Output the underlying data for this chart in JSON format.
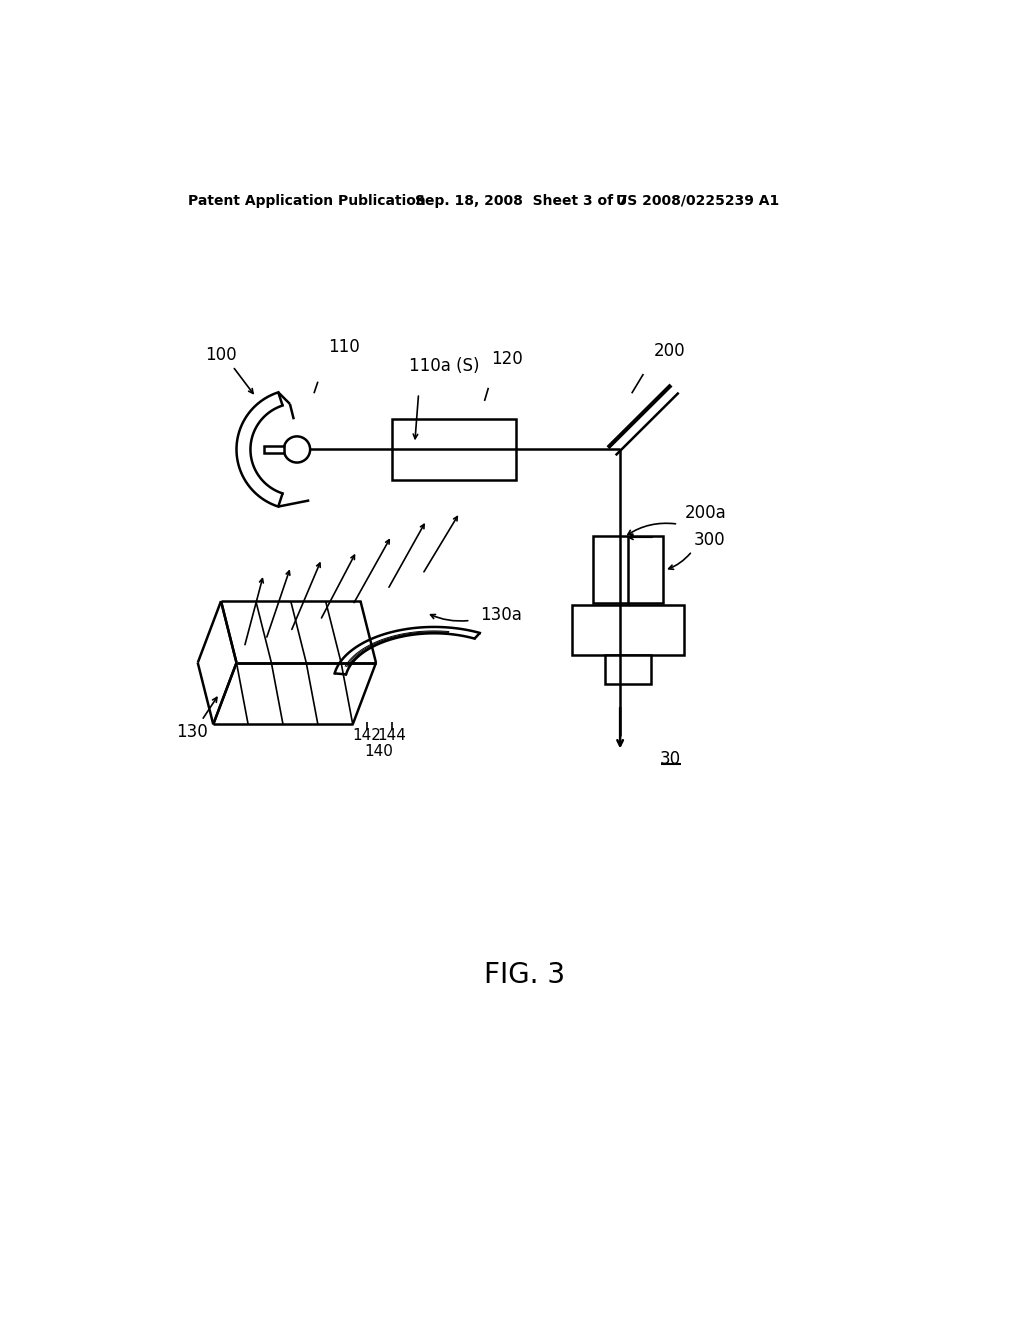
{
  "bg_color": "#ffffff",
  "line_color": "#000000",
  "header_left": "Patent Application Publication",
  "header_center": "Sep. 18, 2008  Sheet 3 of 7",
  "header_right": "US 2008/0225239 A1",
  "figure_label": "FIG. 3",
  "ref_30": "30",
  "ref_100": "100",
  "ref_110": "110",
  "ref_110a": "110a (S)",
  "ref_120": "120",
  "ref_130": "130",
  "ref_130a": "130a",
  "ref_140": "140",
  "ref_142": "142",
  "ref_144": "144",
  "ref_200": "200",
  "ref_200a": "200a",
  "ref_300": "300"
}
